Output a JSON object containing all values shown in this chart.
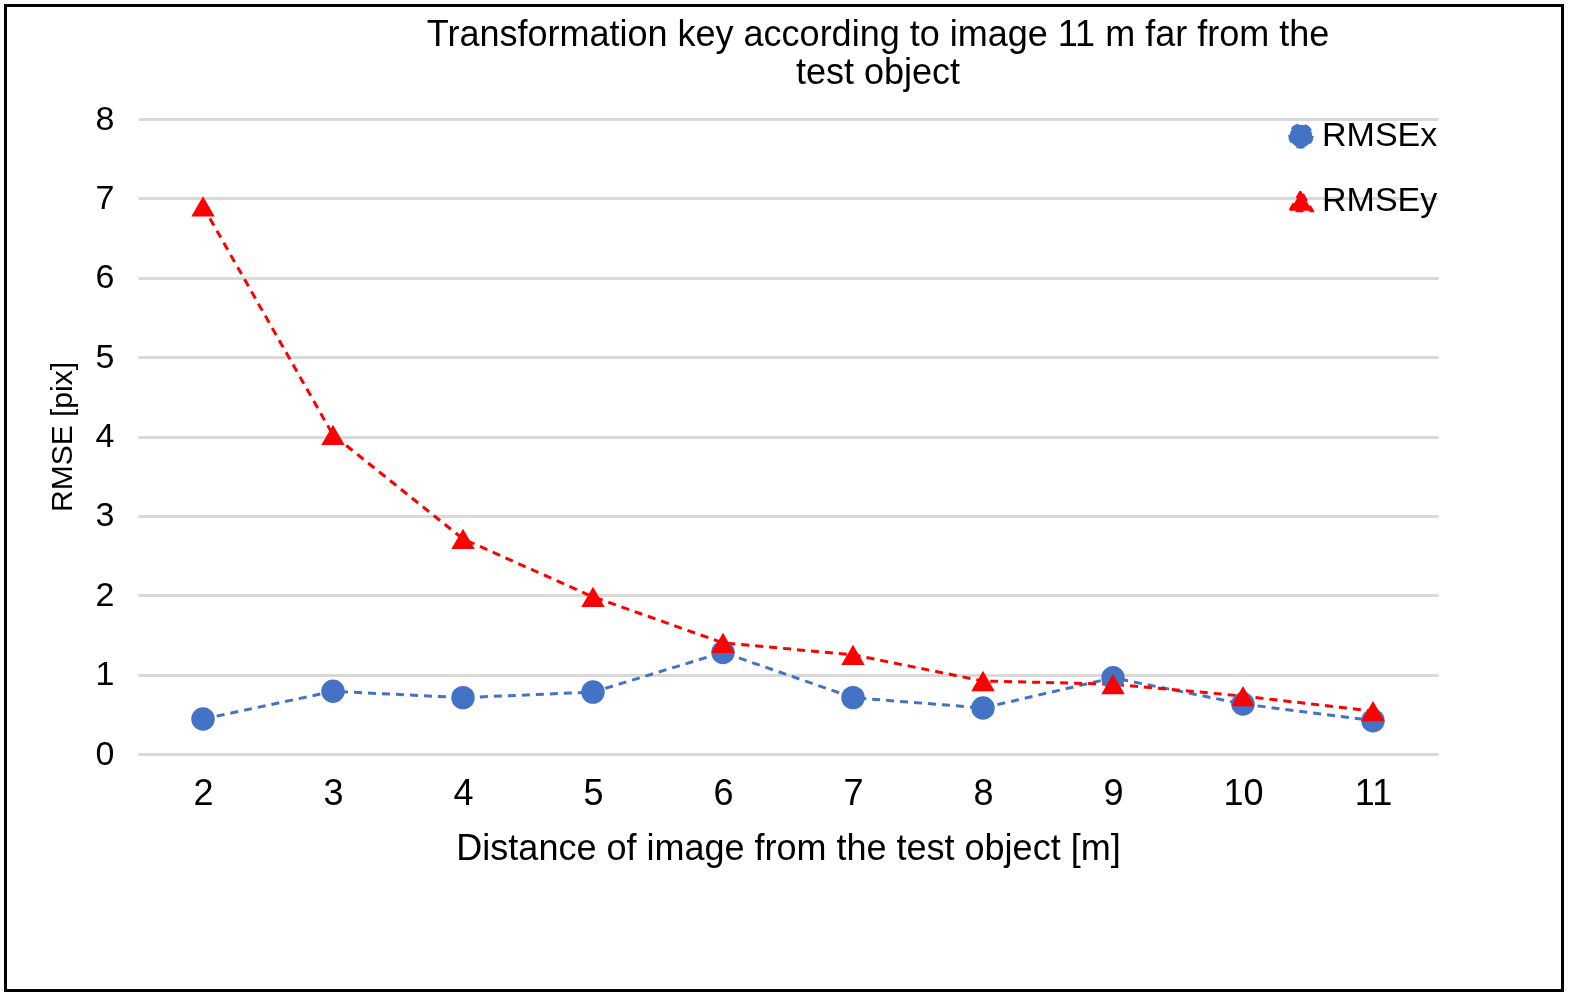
{
  "chart_data": {
    "type": "line",
    "title": "Transformation key according to image 11 m far from the test object",
    "xlabel": "Distance of image from the test object [m]",
    "ylabel": "RMSE [pix]",
    "categories": [
      "2",
      "3",
      "4",
      "5",
      "6",
      "7",
      "8",
      "9",
      "10",
      "11"
    ],
    "series": [
      {
        "name": "RMSEx",
        "color": "#4472c4",
        "marker": "circle",
        "values": [
          0.44,
          0.79,
          0.71,
          0.78,
          1.28,
          0.71,
          0.58,
          0.96,
          0.63,
          0.42
        ]
      },
      {
        "name": "RMSEy",
        "color": "#ff0000",
        "marker": "triangle",
        "values": [
          6.9,
          4.02,
          2.71,
          1.98,
          1.4,
          1.25,
          0.92,
          0.88,
          0.73,
          0.54
        ]
      }
    ],
    "ylim": [
      0,
      8
    ],
    "yticks": [
      0,
      1,
      2,
      3,
      4,
      5,
      6,
      7,
      8
    ],
    "grid": "y",
    "legend": "top right",
    "line_style": "dashed"
  }
}
